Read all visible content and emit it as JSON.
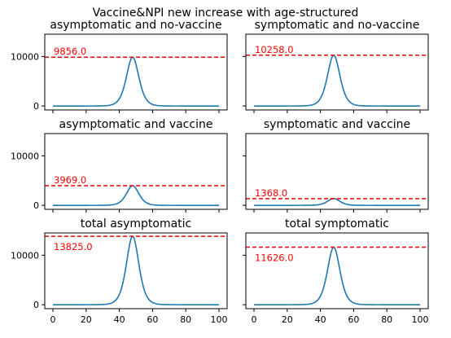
{
  "figure": {
    "suptitle": "Vaccine&NPI new increase with age-structured",
    "colors": {
      "curve": "#1f77b4",
      "peak_line": "#ff0000",
      "peak_text": "#ff0000"
    }
  },
  "chart_data": [
    {
      "type": "line",
      "title": "asymptomatic and no-vaccine",
      "peak": 9856.0,
      "peak_label": "9856.0",
      "x": [
        0,
        100
      ],
      "peak_x": 48,
      "xticks": [
        0,
        20,
        40,
        60,
        80,
        100
      ],
      "yticks": [
        0,
        10000
      ],
      "ylim": [
        -800,
        14500
      ],
      "show_x_tick_labels": false,
      "show_y_tick_labels": true,
      "label_position": "above-line"
    },
    {
      "type": "line",
      "title": "symptomatic and no-vaccine",
      "peak": 10258.0,
      "peak_label": "10258.0",
      "x": [
        0,
        100
      ],
      "peak_x": 48,
      "xticks": [
        0,
        20,
        40,
        60,
        80,
        100
      ],
      "yticks": [
        0,
        10000
      ],
      "ylim": [
        -800,
        14500
      ],
      "show_x_tick_labels": false,
      "show_y_tick_labels": false,
      "label_position": "above-line"
    },
    {
      "type": "line",
      "title": "asymptomatic and vaccine",
      "peak": 3969.0,
      "peak_label": "3969.0",
      "x": [
        0,
        100
      ],
      "peak_x": 48,
      "xticks": [
        0,
        20,
        40,
        60,
        80,
        100
      ],
      "yticks": [
        0,
        10000
      ],
      "ylim": [
        -800,
        14500
      ],
      "show_x_tick_labels": false,
      "show_y_tick_labels": true,
      "label_position": "above-line"
    },
    {
      "type": "line",
      "title": "symptomatic and vaccine",
      "peak": 1368.0,
      "peak_label": "1368.0",
      "x": [
        0,
        100
      ],
      "peak_x": 48,
      "xticks": [
        0,
        20,
        40,
        60,
        80,
        100
      ],
      "yticks": [
        0,
        10000
      ],
      "ylim": [
        -800,
        14500
      ],
      "show_x_tick_labels": false,
      "show_y_tick_labels": false,
      "label_position": "above-line"
    },
    {
      "type": "line",
      "title": "total asymptomatic",
      "peak": 13825.0,
      "peak_label": "13825.0",
      "x": [
        0,
        100
      ],
      "peak_x": 48,
      "xticks": [
        0,
        20,
        40,
        60,
        80,
        100
      ],
      "yticks": [
        0,
        10000
      ],
      "ylim": [
        -800,
        14500
      ],
      "show_x_tick_labels": true,
      "show_y_tick_labels": true,
      "label_position": "below-line"
    },
    {
      "type": "line",
      "title": "total symptomatic",
      "peak": 11626.0,
      "peak_label": "11626.0",
      "x": [
        0,
        100
      ],
      "peak_x": 48,
      "xticks": [
        0,
        20,
        40,
        60,
        80,
        100
      ],
      "yticks": [
        0,
        10000
      ],
      "ylim": [
        -800,
        14500
      ],
      "show_x_tick_labels": true,
      "show_y_tick_labels": false,
      "label_position": "below-line"
    }
  ]
}
